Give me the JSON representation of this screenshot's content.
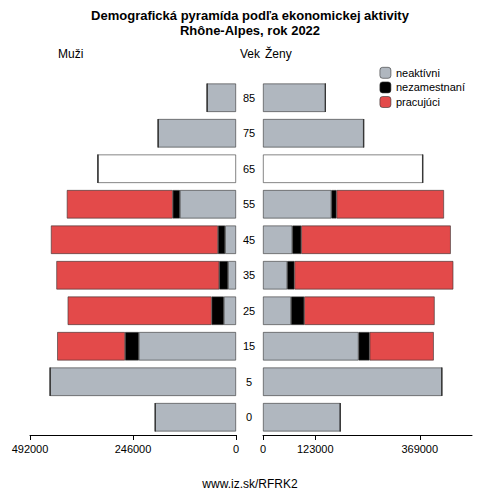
{
  "chart_data": {
    "type": "bar",
    "title": "Demografická pyramída podľa ekonomickej aktivity",
    "subtitle": "Rhône-Alpes, rok 2022",
    "category_label": "Vek",
    "source": "www.iz.sk/RFRK2",
    "orientation": "horizontal",
    "stacked": true,
    "legend": "upper right",
    "categories": [
      "0",
      "5",
      "15",
      "25",
      "35",
      "45",
      "55",
      "65",
      "75",
      "85"
    ],
    "panels": [
      {
        "label": "Muži",
        "xlim": [
          0,
          492000
        ],
        "xticks": [
          0,
          246000,
          492000
        ],
        "series": [
          {
            "name": "neaktívni",
            "color": "#b0b7bf",
            "colors": [
              "#b0b7bf",
              "#b0b7bf",
              "#b0b7bf",
              "#b0b7bf",
              "#b0b7bf",
              "#b0b7bf",
              "#b0b7bf",
              "#ffffff",
              "#b0b7bf",
              "#b0b7bf"
            ],
            "values": [
              193000,
              444000,
              232000,
              29000,
              19000,
              26000,
              134000,
              330000,
              186000,
              69000
            ]
          },
          {
            "name": "nezamestnaní",
            "color": "#000000",
            "values": [
              0,
              0,
              33000,
              29000,
              21000,
              17000,
              17000,
              0,
              0,
              0
            ]
          },
          {
            "name": "pracujúci",
            "color": "#e34a4a",
            "values": [
              0,
              0,
              162000,
              344000,
              389000,
              399000,
              253000,
              0,
              0,
              0
            ]
          }
        ]
      },
      {
        "label": "Ženy",
        "xlim": [
          0,
          492000
        ],
        "xticks": [
          0,
          123000,
          369000
        ],
        "series": [
          {
            "name": "neaktívni",
            "color": "#b0b7bf",
            "colors": [
              "#b0b7bf",
              "#b0b7bf",
              "#b0b7bf",
              "#b0b7bf",
              "#b0b7bf",
              "#b0b7bf",
              "#b0b7bf",
              "#ffffff",
              "#b0b7bf",
              "#b0b7bf"
            ],
            "values": [
              182000,
              421000,
              225000,
              66000,
              57000,
              69000,
              161000,
              376000,
              237000,
              147000
            ]
          },
          {
            "name": "nezamestnaní",
            "color": "#000000",
            "values": [
              0,
              0,
              26000,
              31000,
              17000,
              21000,
              12000,
              0,
              0,
              0
            ]
          },
          {
            "name": "pracujúci",
            "color": "#e34a4a",
            "values": [
              0,
              0,
              151000,
              307000,
              374000,
              352000,
              253000,
              0,
              0,
              0
            ]
          }
        ]
      }
    ]
  }
}
